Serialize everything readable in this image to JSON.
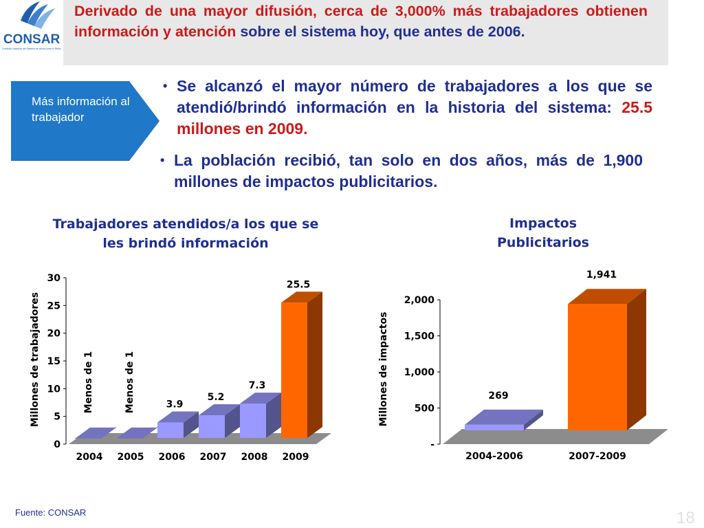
{
  "header": {
    "logo_text": "CONSAR",
    "logo_subtext": "Comisión Nacional del Sistema de Ahorro para el Retiro",
    "headline_red_1": "Derivado de una mayor difusión, cerca de 3,000% más trabajadores obtienen información y atención",
    "headline_blue": " sobre el sistema hoy, que antes de 2006."
  },
  "side_tag": {
    "label": "Más información al trabajador"
  },
  "bullets": [
    {
      "text": "Se alcanzó el mayor número de trabajadores a los que se atendió/brindó información en la historia del sistema: ",
      "highlight": "25.5 millones en 2009."
    },
    {
      "text": "La población recibió, tan solo en dos años, más de 1,900 millones de impactos publicitarios.",
      "highlight": ""
    }
  ],
  "colors": {
    "blue_text": "#1f2f91",
    "red_text": "#cc1a1a",
    "bar_blue": "#9999ff",
    "bar_orange": "#ff6600",
    "tag_blue": "#1f78c8"
  },
  "chart_data": [
    {
      "type": "bar",
      "title": "Trabajadores atendidos/a los que se les brindó información",
      "ylabel": "Millones de trabajadores",
      "xlabel": "",
      "categories": [
        "2004",
        "2005",
        "2006",
        "2007",
        "2008",
        "2009"
      ],
      "values": [
        1,
        1,
        3.9,
        5.2,
        7.3,
        25.5
      ],
      "labels": [
        "Menos de 1",
        "Menos de 1",
        "3.9",
        "5.2",
        "7.3",
        "25.5"
      ],
      "ylim": [
        0,
        30
      ],
      "yticks": [
        "0",
        "5",
        "10",
        "15",
        "20",
        "25",
        "30"
      ],
      "bar_colors": [
        "#9999ff",
        "#9999ff",
        "#9999ff",
        "#9999ff",
        "#9999ff",
        "#ff6600"
      ],
      "grid": false,
      "style": "3d"
    },
    {
      "type": "bar",
      "title": "Impactos Publicitarios",
      "ylabel": "Millones de impactos",
      "xlabel": "",
      "categories": [
        "2004-2006",
        "2007-2009"
      ],
      "values": [
        269,
        1941
      ],
      "labels": [
        "269",
        "1,941"
      ],
      "ylim": [
        0,
        2000
      ],
      "yticks": [
        "-",
        "500",
        "1,000",
        "1,500",
        "2,000"
      ],
      "bar_colors": [
        "#9999ff",
        "#ff6600"
      ],
      "grid": false,
      "style": "3d"
    }
  ],
  "footer": {
    "source": "Fuente: CONSAR",
    "page_number": "18"
  }
}
